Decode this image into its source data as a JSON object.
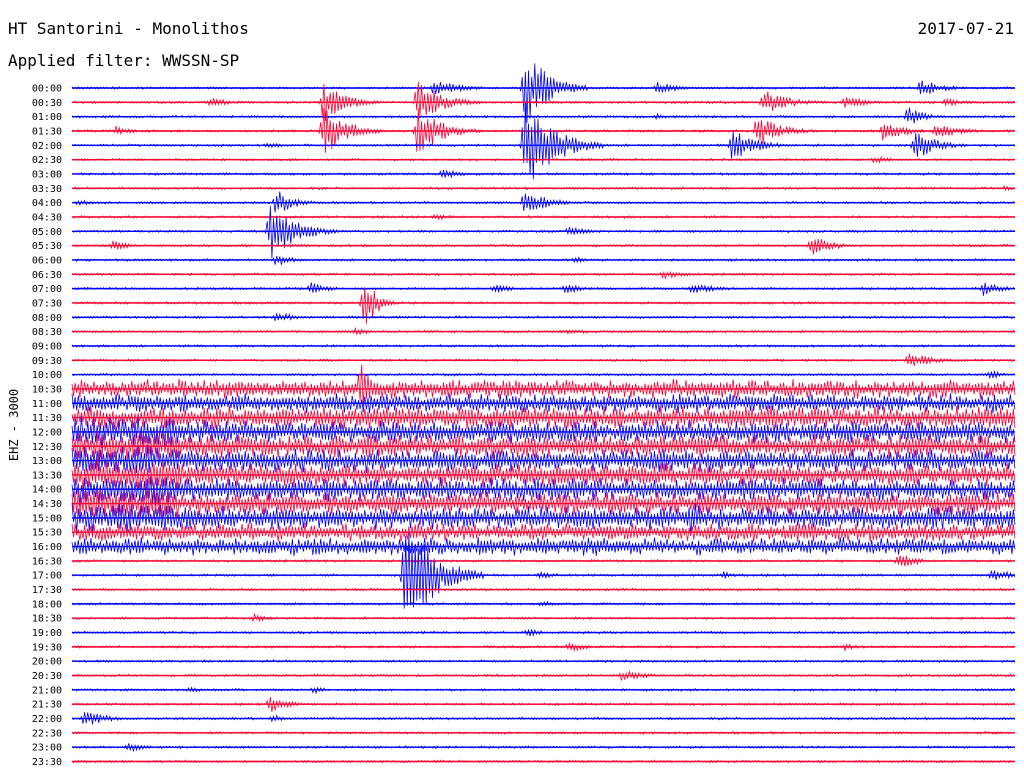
{
  "header": {
    "station": "HT Santorini - Monolithos",
    "date": "2017-07-21",
    "filter_label": "Applied filter: WWSSN-SP",
    "channel": "EHZ - 3000"
  },
  "chart_data": {
    "type": "helicorder",
    "title": "HT Santorini - Monolithos",
    "date": "2017-07-21",
    "filter": "WWSSN-SP",
    "channel": "EHZ - 3000",
    "trace_minutes": 30,
    "colors": {
      "even": "#0000ff",
      "odd": "#ff0033",
      "background": "#ffffff"
    },
    "row_labels": [
      "00:00",
      "00:30",
      "01:00",
      "01:30",
      "02:00",
      "02:30",
      "03:00",
      "03:30",
      "04:00",
      "04:30",
      "05:00",
      "05:30",
      "06:00",
      "06:30",
      "07:00",
      "07:30",
      "08:00",
      "08:30",
      "09:00",
      "09:30",
      "10:00",
      "10:30",
      "11:00",
      "11:30",
      "12:00",
      "12:30",
      "13:00",
      "13:30",
      "14:00",
      "14:30",
      "15:00",
      "15:30",
      "16:00",
      "16:30",
      "17:00",
      "17:30",
      "18:00",
      "18:30",
      "19:00",
      "19:30",
      "20:00",
      "20:30",
      "21:00",
      "21:30",
      "22:00",
      "22:30",
      "23:00",
      "23:30"
    ],
    "events": [
      {
        "row": 0,
        "minute": 11.5,
        "amp": 1.2,
        "dur": 2.5
      },
      {
        "row": 0,
        "minute": 14.4,
        "amp": 6.0,
        "dur": 2.0
      },
      {
        "row": 0,
        "minute": 18.6,
        "amp": 1.0,
        "dur": 1.8
      },
      {
        "row": 0,
        "minute": 27.0,
        "amp": 1.3,
        "dur": 2.0
      },
      {
        "row": 1,
        "minute": 4.4,
        "amp": 0.8,
        "dur": 1.8
      },
      {
        "row": 1,
        "minute": 8.0,
        "amp": 3.0,
        "dur": 2.0
      },
      {
        "row": 1,
        "minute": 11.0,
        "amp": 3.5,
        "dur": 2.0
      },
      {
        "row": 1,
        "minute": 22.0,
        "amp": 2.0,
        "dur": 2.2
      },
      {
        "row": 1,
        "minute": 24.6,
        "amp": 0.9,
        "dur": 2.0
      },
      {
        "row": 1,
        "minute": 27.8,
        "amp": 0.6,
        "dur": 2.0
      },
      {
        "row": 2,
        "minute": 18.6,
        "amp": 0.5,
        "dur": 1.0
      },
      {
        "row": 2,
        "minute": 26.6,
        "amp": 1.5,
        "dur": 1.5
      },
      {
        "row": 3,
        "minute": 1.4,
        "amp": 0.7,
        "dur": 1.5
      },
      {
        "row": 3,
        "minute": 8.0,
        "amp": 4.0,
        "dur": 2.0
      },
      {
        "row": 3,
        "minute": 11.0,
        "amp": 4.0,
        "dur": 2.0
      },
      {
        "row": 3,
        "minute": 21.8,
        "amp": 2.5,
        "dur": 2.0
      },
      {
        "row": 3,
        "minute": 25.8,
        "amp": 1.5,
        "dur": 2.0
      },
      {
        "row": 3,
        "minute": 27.5,
        "amp": 1.2,
        "dur": 2.0
      },
      {
        "row": 4,
        "minute": 6.2,
        "amp": 0.6,
        "dur": 1.2
      },
      {
        "row": 4,
        "minute": 14.4,
        "amp": 7.0,
        "dur": 2.5
      },
      {
        "row": 4,
        "minute": 21.0,
        "amp": 2.5,
        "dur": 2.0
      },
      {
        "row": 4,
        "minute": 26.8,
        "amp": 2.5,
        "dur": 1.8
      },
      {
        "row": 5,
        "minute": 25.5,
        "amp": 0.6,
        "dur": 1.5
      },
      {
        "row": 6,
        "minute": 11.8,
        "amp": 0.8,
        "dur": 1.5
      },
      {
        "row": 7,
        "minute": 29.7,
        "amp": 0.6,
        "dur": 0.6
      },
      {
        "row": 8,
        "minute": 0.2,
        "amp": 0.6,
        "dur": 1.0
      },
      {
        "row": 8,
        "minute": 6.5,
        "amp": 2.0,
        "dur": 1.5
      },
      {
        "row": 8,
        "minute": 14.4,
        "amp": 2.0,
        "dur": 2.0
      },
      {
        "row": 9,
        "minute": 11.5,
        "amp": 0.5,
        "dur": 1.8
      },
      {
        "row": 10,
        "minute": 6.3,
        "amp": 4.5,
        "dur": 2.2
      },
      {
        "row": 10,
        "minute": 15.8,
        "amp": 0.8,
        "dur": 1.8
      },
      {
        "row": 11,
        "minute": 1.3,
        "amp": 0.8,
        "dur": 1.5
      },
      {
        "row": 11,
        "minute": 23.5,
        "amp": 1.5,
        "dur": 2.0
      },
      {
        "row": 12,
        "minute": 6.5,
        "amp": 1.0,
        "dur": 1.5
      },
      {
        "row": 12,
        "minute": 16.0,
        "amp": 0.5,
        "dur": 1.5
      },
      {
        "row": 13,
        "minute": 18.8,
        "amp": 0.7,
        "dur": 2.0
      },
      {
        "row": 14,
        "minute": 7.6,
        "amp": 1.0,
        "dur": 1.5
      },
      {
        "row": 14,
        "minute": 13.4,
        "amp": 0.8,
        "dur": 1.5
      },
      {
        "row": 14,
        "minute": 15.7,
        "amp": 0.8,
        "dur": 1.5
      },
      {
        "row": 14,
        "minute": 19.7,
        "amp": 0.8,
        "dur": 2.5
      },
      {
        "row": 14,
        "minute": 29.0,
        "amp": 1.2,
        "dur": 1.5
      },
      {
        "row": 15,
        "minute": 9.3,
        "amp": 5.0,
        "dur": 1.0
      },
      {
        "row": 16,
        "minute": 6.5,
        "amp": 0.9,
        "dur": 1.5
      },
      {
        "row": 17,
        "minute": 9.0,
        "amp": 0.5,
        "dur": 1.8
      },
      {
        "row": 17,
        "minute": 15.8,
        "amp": 0.5,
        "dur": 1.8
      },
      {
        "row": 19,
        "minute": 26.6,
        "amp": 1.3,
        "dur": 2.0
      },
      {
        "row": 20,
        "minute": 29.2,
        "amp": 0.8,
        "dur": 1.0
      },
      {
        "row": 21,
        "minute": 9.2,
        "amp": 5.0,
        "dur": 1.0
      },
      {
        "row": 29,
        "minute": 6.3,
        "amp": 1.0,
        "dur": 1.2
      },
      {
        "row": 29,
        "minute": 23.4,
        "amp": 1.0,
        "dur": 1.5
      },
      {
        "row": 29,
        "minute": 26.8,
        "amp": 0.7,
        "dur": 1.5
      },
      {
        "row": 30,
        "minute": 3.3,
        "amp": 0.6,
        "dur": 1.0
      },
      {
        "row": 30,
        "minute": 19.7,
        "amp": 3.0,
        "dur": 1.5
      },
      {
        "row": 33,
        "minute": 26.3,
        "amp": 1.5,
        "dur": 1.5
      },
      {
        "row": 34,
        "minute": 10.6,
        "amp": 9.0,
        "dur": 2.5
      },
      {
        "row": 34,
        "minute": 14.9,
        "amp": 0.6,
        "dur": 1.5
      },
      {
        "row": 34,
        "minute": 20.7,
        "amp": 0.6,
        "dur": 1.5
      },
      {
        "row": 34,
        "minute": 29.3,
        "amp": 1.2,
        "dur": 1.5
      },
      {
        "row": 36,
        "minute": 14.9,
        "amp": 0.5,
        "dur": 1.5
      },
      {
        "row": 37,
        "minute": 5.8,
        "amp": 0.6,
        "dur": 1.5
      },
      {
        "row": 38,
        "minute": 14.5,
        "amp": 0.6,
        "dur": 1.5
      },
      {
        "row": 39,
        "minute": 15.8,
        "amp": 0.8,
        "dur": 1.5
      },
      {
        "row": 39,
        "minute": 24.6,
        "amp": 0.6,
        "dur": 1.0
      },
      {
        "row": 41,
        "minute": 17.5,
        "amp": 0.9,
        "dur": 2.0
      },
      {
        "row": 42,
        "minute": 3.7,
        "amp": 0.5,
        "dur": 1.2
      },
      {
        "row": 42,
        "minute": 7.7,
        "amp": 0.6,
        "dur": 1.0
      },
      {
        "row": 43,
        "minute": 6.3,
        "amp": 1.4,
        "dur": 1.5
      },
      {
        "row": 44,
        "minute": 0.4,
        "amp": 1.3,
        "dur": 1.8
      },
      {
        "row": 44,
        "minute": 6.4,
        "amp": 0.7,
        "dur": 1.0
      },
      {
        "row": 46,
        "minute": 1.8,
        "amp": 0.9,
        "dur": 1.5
      }
    ],
    "noise_bursts": [
      {
        "row_from": 21,
        "row_to": 23,
        "minute_from": 0.0,
        "minute_to": 30.0,
        "amp": 1.5
      },
      {
        "row_from": 23,
        "row_to": 31,
        "minute_from": 0.0,
        "minute_to": 30.0,
        "amp": 1.8
      },
      {
        "row_from": 31,
        "row_to": 33,
        "minute_from": 0.0,
        "minute_to": 30.0,
        "amp": 1.4
      },
      {
        "row_from": 24,
        "row_to": 31,
        "minute_from": 0.0,
        "minute_to": 3.4,
        "amp": 2.5
      }
    ]
  }
}
